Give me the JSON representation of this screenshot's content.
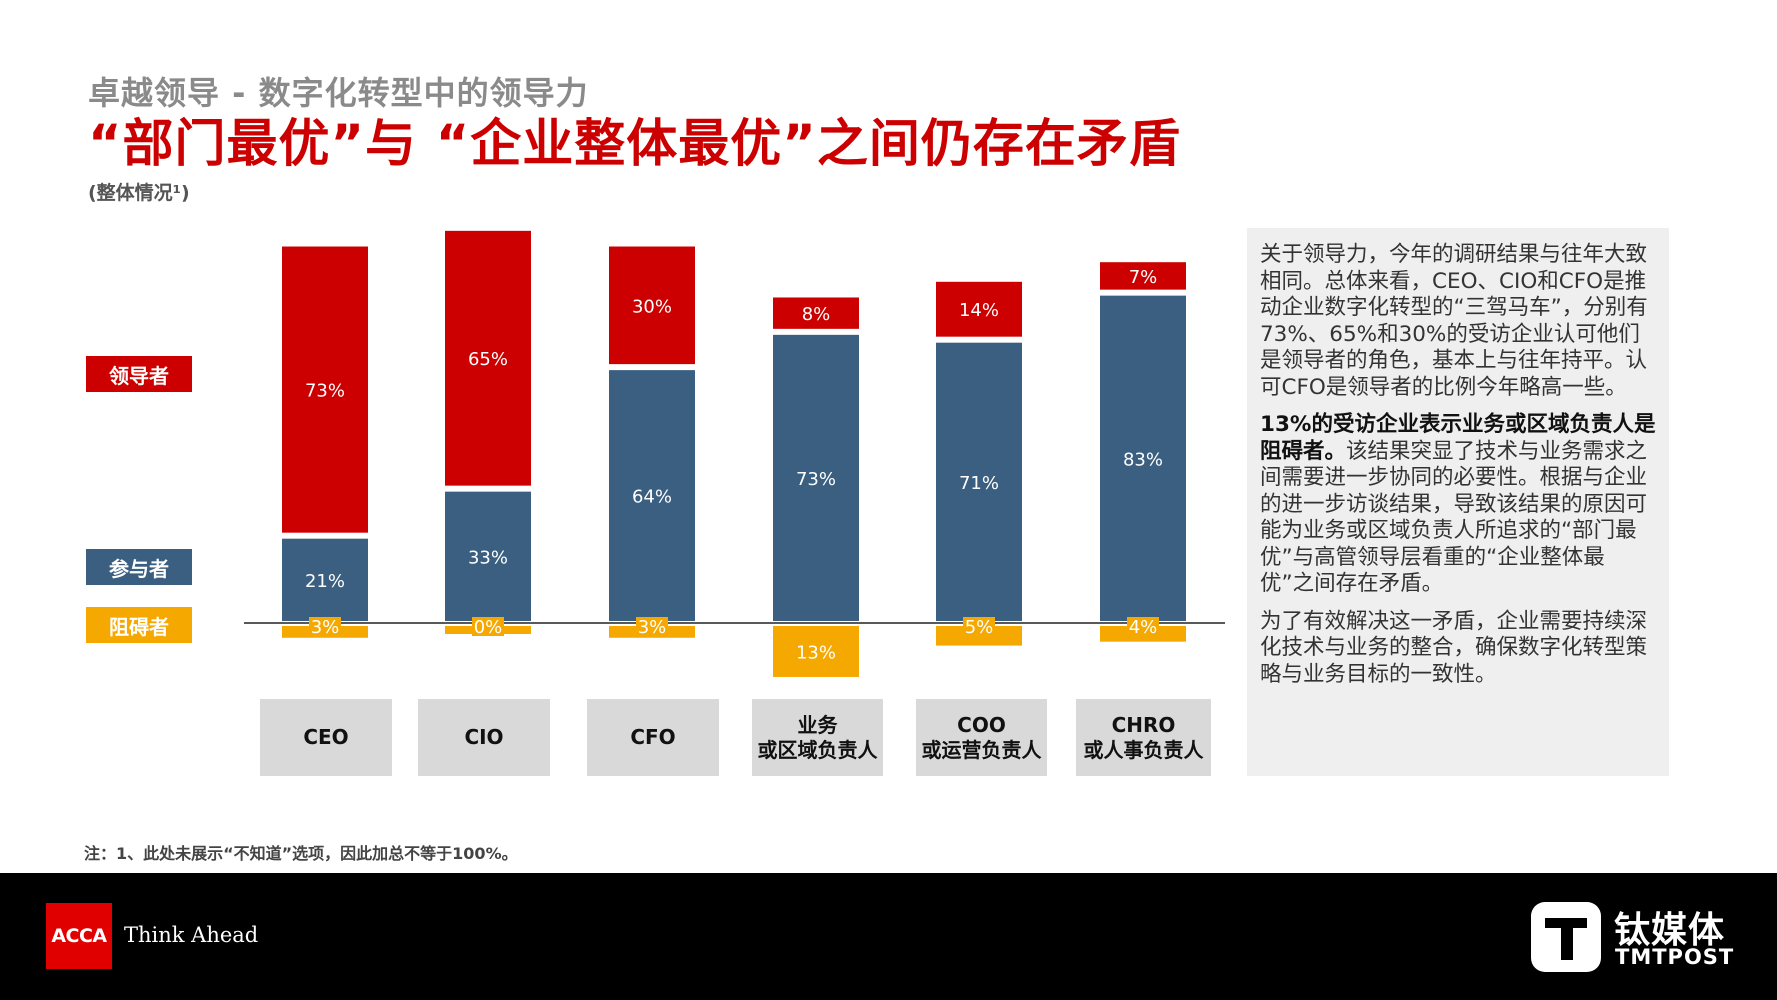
{
  "header": {
    "subtitle": "卓越领导 - 数字化转型中的领导力",
    "title": "“部门最优”与 “企业整体最优”之间仍存在矛盾",
    "chart_note": "(整体情况¹)"
  },
  "legend": [
    {
      "label": "领导者",
      "color": "#cc0000"
    },
    {
      "label": "参与者",
      "color": "#3a5f80"
    },
    {
      "label": "阻碍者",
      "color": "#f5a800"
    }
  ],
  "chart_data": {
    "type": "bar",
    "stacked": true,
    "categories": [
      "CEO",
      "CIO",
      "CFO",
      "业务\n或区域负责人",
      "COO\n或运营负责人",
      "CHRO\n或人事负责人"
    ],
    "series": [
      {
        "name": "领导者",
        "values": [
          73,
          65,
          30,
          8,
          14,
          7
        ]
      },
      {
        "name": "参与者",
        "values": [
          21,
          33,
          64,
          73,
          71,
          83
        ]
      },
      {
        "name": "阻碍者",
        "values": [
          3,
          0,
          3,
          13,
          5,
          4
        ]
      }
    ]
  },
  "side_panel": {
    "p1": "关于领导力，今年的调研结果与往年大致相同。总体来看，CEO、CIO和CFO是推动企业数字化转型的“三驾马车”，分别有73%、65%和30%的受访企业认可他们是领导者的角色，基本上与往年持平。认可CFO是领导者的比例今年略高一些。",
    "p2_strong": "13%的受访企业表示业务或区域负责人是阻碍者。",
    "p2_rest": "该结果突显了技术与业务需求之间需要进一步协同的必要性。根据与企业的进一步访谈结果，导致该结果的原因可能为业务或区域负责人所追求的“部门最优”与高管领导层看重的“企业整体最优”之间存在矛盾。",
    "p3": "为了有效解决这一矛盾，企业需要持续深化技术与业务的整合，确保数字化转型策略与业务目标的一致性。"
  },
  "footnote": "注：1、此处未展示“不知道”选项，因此加总不等于100%。",
  "footer": {
    "acca_logo_text": "ACCA",
    "acca_tagline": "Think Ahead",
    "tmt_cn": "钛媒体",
    "tmt_en": "TMTPOST"
  },
  "colors": {
    "leader": "#cc0000",
    "participant": "#3a5f80",
    "obstacle": "#f5a800",
    "title": "#cc0000"
  }
}
